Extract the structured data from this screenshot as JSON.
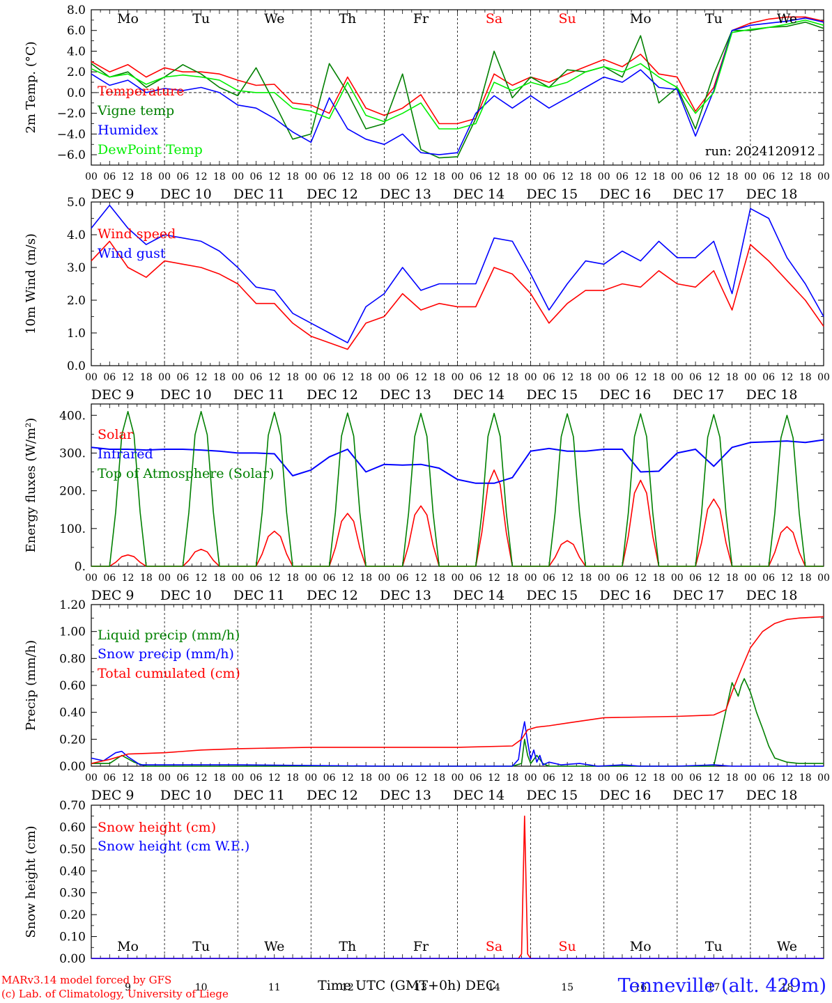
{
  "days": [
    "Mo",
    "Tu",
    "We",
    "Th",
    "Fr",
    "Sa",
    "Su",
    "Mo",
    "Tu",
    "We"
  ],
  "weekend_days": [
    "Sa",
    "Su"
  ],
  "dates": [
    "DEC  9",
    "DEC 10",
    "DEC 11",
    "DEC 12",
    "DEC 13",
    "DEC 14",
    "DEC 15",
    "DEC 16",
    "DEC 17",
    "DEC 18"
  ],
  "date_numbers": [
    "9",
    "10",
    "11",
    "12",
    "13",
    "14",
    "15",
    "16",
    "17",
    "18"
  ],
  "hour_labels": [
    "00",
    "06",
    "12",
    "18"
  ],
  "final_hour_label": "00",
  "colors": {
    "red": "#ff0000",
    "green": "#008000",
    "blue": "#0000ff",
    "lightgreen": "#00ee00",
    "grid": "#000000"
  },
  "footer": {
    "credit_line1": "MARv3.14 model forced by GFS",
    "credit_line2": "(c) Lab. of Climatology, University of Liege",
    "time_axis": "Time UTC (GMT+0h) DEC",
    "station": "Tenneville (alt. 429m)"
  },
  "chart_data": [
    {
      "id": "temp",
      "type": "line",
      "ylabel": "2m Temp. (°C)",
      "ylim": [
        -7,
        8
      ],
      "yticks": [
        -6,
        -4,
        -2,
        0,
        2,
        4,
        6,
        8
      ],
      "ytick_labels": [
        "−6.0",
        "−4.0",
        "−2.0",
        "0.0",
        "2.0",
        "4.0",
        "6.0",
        "8.0"
      ],
      "zero_line": true,
      "annotation": "run: 2024120912",
      "show_day_names": "top",
      "x_unit": "hours since DEC 9 00 UTC",
      "series": [
        {
          "name": "Temperature",
          "color": "red",
          "x": [
            0,
            6,
            12,
            18,
            24,
            30,
            36,
            42,
            48,
            54,
            60,
            66,
            72,
            78,
            84,
            90,
            96,
            102,
            108,
            114,
            120,
            126,
            132,
            138,
            144,
            150,
            156,
            162,
            168,
            174,
            180,
            186,
            192,
            198,
            204,
            210,
            216,
            222,
            228,
            234,
            240
          ],
          "y": [
            3.0,
            2.0,
            2.7,
            1.5,
            2.4,
            2.0,
            2.0,
            1.8,
            1.2,
            0.7,
            0.8,
            -1.0,
            -1.2,
            -2.0,
            1.5,
            -1.5,
            -2.2,
            -1.5,
            -0.2,
            -3.0,
            -3.0,
            -2.5,
            1.8,
            0.7,
            1.5,
            1.0,
            1.8,
            2.5,
            3.2,
            2.5,
            3.7,
            1.8,
            1.5,
            -1.8,
            0.5,
            6.0,
            6.7,
            7.1,
            7.3,
            7.3,
            6.9
          ]
        },
        {
          "name": "Vigne temp",
          "color": "green",
          "x": [
            0,
            6,
            12,
            18,
            24,
            30,
            36,
            42,
            48,
            54,
            60,
            66,
            72,
            78,
            84,
            90,
            96,
            102,
            108,
            114,
            120,
            126,
            132,
            138,
            144,
            150,
            156,
            162,
            168,
            174,
            180,
            186,
            192,
            198,
            204,
            210,
            216,
            222,
            228,
            234,
            240
          ],
          "y": [
            2.8,
            1.5,
            2.0,
            0.5,
            1.5,
            2.7,
            1.8,
            0.5,
            -0.3,
            2.4,
            -1.0,
            -4.5,
            -4.0,
            2.8,
            0.0,
            -3.5,
            -3.0,
            1.8,
            -5.5,
            -6.3,
            -6.2,
            -2.5,
            4.0,
            -0.5,
            1.5,
            0.5,
            2.2,
            2.0,
            2.5,
            1.5,
            5.5,
            -1.0,
            0.5,
            -3.5,
            1.8,
            6.0,
            6.0,
            6.3,
            6.4,
            6.8,
            6.2
          ]
        },
        {
          "name": "Humidex",
          "color": "blue",
          "x": [
            0,
            6,
            12,
            18,
            24,
            30,
            36,
            42,
            48,
            54,
            60,
            66,
            72,
            78,
            84,
            90,
            96,
            102,
            108,
            114,
            120,
            126,
            132,
            138,
            144,
            150,
            156,
            162,
            168,
            174,
            180,
            186,
            192,
            198,
            204,
            210,
            216,
            222,
            228,
            234,
            240
          ],
          "y": [
            1.8,
            0.7,
            1.2,
            0.0,
            0.4,
            0.2,
            0.5,
            0.0,
            -1.2,
            -1.5,
            -2.5,
            -3.8,
            -4.8,
            -0.5,
            -3.5,
            -4.5,
            -5.0,
            -4.0,
            -5.8,
            -6.0,
            -5.8,
            -2.0,
            -0.3,
            -1.5,
            -0.3,
            -1.5,
            -0.5,
            0.5,
            1.5,
            1.0,
            2.2,
            0.5,
            0.3,
            -4.2,
            0.2,
            6.0,
            6.5,
            6.7,
            6.9,
            7.2,
            6.8
          ]
        },
        {
          "name": "DewPoint Temp",
          "color": "lightgreen",
          "x": [
            0,
            6,
            12,
            18,
            24,
            30,
            36,
            42,
            48,
            54,
            60,
            66,
            72,
            78,
            84,
            90,
            96,
            102,
            108,
            114,
            120,
            126,
            132,
            138,
            144,
            150,
            156,
            162,
            168,
            174,
            180,
            186,
            192,
            198,
            204,
            210,
            216,
            222,
            228,
            234,
            240
          ],
          "y": [
            2.3,
            1.5,
            1.8,
            0.8,
            1.5,
            1.7,
            1.5,
            1.2,
            0.2,
            0.0,
            0.0,
            -1.5,
            -1.8,
            -2.5,
            1.0,
            -2.2,
            -2.8,
            -2.0,
            -1.0,
            -3.5,
            -3.5,
            -3.0,
            1.0,
            0.2,
            1.0,
            0.5,
            1.0,
            2.0,
            2.5,
            2.0,
            2.8,
            1.5,
            0.5,
            -2.0,
            0.0,
            5.8,
            6.1,
            6.3,
            6.6,
            7.0,
            6.5
          ]
        }
      ]
    },
    {
      "id": "wind",
      "type": "line",
      "ylabel": "10m Wind (m/s)",
      "ylim": [
        0,
        5
      ],
      "yticks": [
        0,
        1,
        2,
        3,
        4,
        5
      ],
      "ytick_labels": [
        "0.0",
        "1.0",
        "2.0",
        "3.0",
        "4.0",
        "5.0"
      ],
      "x_unit": "hours since DEC 9 00 UTC",
      "series": [
        {
          "name": "Wind speed",
          "color": "red",
          "x": [
            0,
            6,
            12,
            18,
            24,
            30,
            36,
            42,
            48,
            54,
            60,
            66,
            72,
            78,
            84,
            90,
            96,
            102,
            108,
            114,
            120,
            126,
            132,
            138,
            144,
            150,
            156,
            162,
            168,
            174,
            180,
            186,
            192,
            198,
            204,
            210,
            216,
            222,
            228,
            234,
            240
          ],
          "y": [
            3.2,
            3.8,
            3.0,
            2.7,
            3.2,
            3.1,
            3.0,
            2.8,
            2.5,
            1.9,
            1.9,
            1.3,
            0.9,
            0.7,
            0.5,
            1.3,
            1.5,
            2.2,
            1.7,
            1.9,
            1.8,
            1.8,
            3.0,
            2.8,
            2.2,
            1.3,
            1.9,
            2.3,
            2.3,
            2.5,
            2.4,
            2.9,
            2.5,
            2.4,
            2.9,
            1.7,
            3.7,
            3.2,
            2.6,
            2.0,
            1.2
          ]
        },
        {
          "name": "Wind gust",
          "color": "blue",
          "x": [
            0,
            6,
            12,
            18,
            24,
            30,
            36,
            42,
            48,
            54,
            60,
            66,
            72,
            78,
            84,
            90,
            96,
            102,
            108,
            114,
            120,
            126,
            132,
            138,
            144,
            150,
            156,
            162,
            168,
            174,
            180,
            186,
            192,
            198,
            204,
            210,
            216,
            222,
            228,
            234,
            240
          ],
          "y": [
            4.2,
            4.9,
            4.2,
            3.7,
            4.0,
            3.9,
            3.8,
            3.5,
            3.0,
            2.4,
            2.3,
            1.6,
            1.3,
            1.0,
            0.7,
            1.8,
            2.2,
            3.0,
            2.3,
            2.5,
            2.5,
            2.5,
            3.9,
            3.8,
            2.8,
            1.7,
            2.5,
            3.2,
            3.1,
            3.5,
            3.2,
            3.8,
            3.3,
            3.3,
            3.8,
            2.2,
            4.8,
            4.5,
            3.3,
            2.5,
            1.5
          ]
        }
      ]
    },
    {
      "id": "energy",
      "type": "line",
      "ylabel": "Energy fluxes (W/m²)",
      "ylim": [
        0,
        430
      ],
      "yticks": [
        0,
        100,
        200,
        300,
        400
      ],
      "ytick_labels": [
        "0.",
        "100.",
        "200.",
        "300.",
        "400."
      ],
      "x_unit": "hours since DEC 9 00 UTC",
      "series": [
        {
          "name": "Solar",
          "color": "red",
          "peak_hour": 12,
          "peaks": [
            30,
            45,
            93,
            140,
            160,
            255,
            68,
            228,
            178,
            105
          ]
        },
        {
          "name": "Infrared",
          "color": "blue",
          "x": [
            0,
            6,
            12,
            18,
            24,
            30,
            36,
            42,
            48,
            54,
            60,
            66,
            72,
            78,
            84,
            90,
            96,
            102,
            108,
            114,
            120,
            126,
            132,
            138,
            144,
            150,
            156,
            162,
            168,
            174,
            180,
            186,
            192,
            198,
            204,
            210,
            216,
            222,
            228,
            234,
            240
          ],
          "y": [
            315,
            310,
            310,
            308,
            310,
            310,
            308,
            305,
            300,
            300,
            298,
            240,
            255,
            290,
            310,
            250,
            270,
            268,
            270,
            260,
            230,
            220,
            220,
            235,
            305,
            312,
            305,
            305,
            310,
            310,
            250,
            252,
            300,
            310,
            265,
            315,
            328,
            330,
            332,
            328,
            335
          ]
        },
        {
          "name": "Top of Atmosphere (Solar)",
          "color": "green",
          "peak_hour": 12,
          "peaks": [
            410,
            410,
            408,
            406,
            405,
            405,
            404,
            404,
            402,
            400
          ]
        }
      ]
    },
    {
      "id": "precip",
      "type": "line",
      "ylabel": "Precip (mm/h)",
      "ylim": [
        0,
        1.2
      ],
      "yticks": [
        0,
        0.2,
        0.4,
        0.6,
        0.8,
        1.0,
        1.2
      ],
      "ytick_labels": [
        "0.00",
        "0.20",
        "0.40",
        "0.60",
        "0.80",
        "1.00",
        "1.20"
      ],
      "x_unit": "hours since DEC 9 00 UTC",
      "series": [
        {
          "name": "Liquid precip (mm/h)",
          "color": "green",
          "x": [
            0,
            6,
            10,
            14,
            18,
            24,
            36,
            48,
            96,
            120,
            138,
            141,
            142,
            143,
            144,
            146,
            148,
            150,
            156,
            168,
            192,
            204,
            210,
            212,
            213,
            214,
            216,
            218,
            220,
            222,
            224,
            228,
            232,
            236,
            240
          ],
          "y": [
            0.02,
            0.02,
            0.08,
            0.03,
            0.0,
            0.0,
            0.0,
            0.0,
            0.0,
            0.0,
            0.0,
            0.02,
            0.2,
            0.08,
            0.02,
            0.08,
            0.02,
            0.0,
            0.0,
            0.0,
            0.0,
            0.0,
            0.62,
            0.52,
            0.6,
            0.65,
            0.55,
            0.4,
            0.28,
            0.15,
            0.06,
            0.03,
            0.02,
            0.02,
            0.02
          ]
        },
        {
          "name": "Snow precip (mm/h)",
          "color": "blue",
          "x": [
            0,
            4,
            8,
            10,
            12,
            16,
            20,
            24,
            48,
            96,
            120,
            138,
            140,
            141,
            142,
            143,
            144,
            145,
            146,
            147,
            148,
            150,
            154,
            160,
            166,
            174,
            180,
            192,
            204,
            210,
            240
          ],
          "y": [
            0.06,
            0.04,
            0.1,
            0.11,
            0.07,
            0.01,
            0.01,
            0.01,
            0.01,
            0.0,
            0.0,
            0.0,
            0.05,
            0.22,
            0.33,
            0.18,
            0.05,
            0.12,
            0.03,
            0.08,
            0.01,
            0.03,
            0.01,
            0.02,
            0.0,
            0.01,
            0.0,
            0.0,
            0.01,
            0.0,
            0.0
          ]
        },
        {
          "name": "Total cumulated (cm)",
          "color": "red",
          "x": [
            0,
            6,
            12,
            24,
            36,
            48,
            72,
            96,
            120,
            138,
            141,
            143,
            146,
            150,
            156,
            168,
            192,
            204,
            208,
            210,
            213,
            216,
            220,
            224,
            228,
            232,
            240
          ],
          "y": [
            0.02,
            0.05,
            0.09,
            0.1,
            0.12,
            0.13,
            0.14,
            0.14,
            0.14,
            0.15,
            0.2,
            0.27,
            0.29,
            0.3,
            0.32,
            0.36,
            0.37,
            0.38,
            0.42,
            0.55,
            0.72,
            0.88,
            1.0,
            1.06,
            1.09,
            1.1,
            1.11
          ]
        }
      ]
    },
    {
      "id": "snow",
      "type": "line",
      "ylabel": "Snow height (cm)",
      "ylim": [
        0,
        0.7
      ],
      "yticks": [
        0,
        0.1,
        0.2,
        0.3,
        0.4,
        0.5,
        0.6,
        0.7
      ],
      "ytick_labels": [
        "0.00",
        "0.10",
        "0.20",
        "0.30",
        "0.40",
        "0.50",
        "0.60",
        "0.70"
      ],
      "show_day_names": "bottom",
      "x_unit": "hours since DEC 9 00 UTC",
      "series": [
        {
          "name": "Snow height (cm)",
          "color": "red",
          "x": [
            0,
            140,
            141,
            142,
            143,
            144,
            240
          ],
          "y": [
            0,
            0,
            0.02,
            0.65,
            0.02,
            0,
            0
          ]
        },
        {
          "name": "Snow height (cm W.E.)",
          "color": "blue",
          "x": [
            0,
            240
          ],
          "y": [
            0,
            0
          ]
        }
      ]
    }
  ]
}
